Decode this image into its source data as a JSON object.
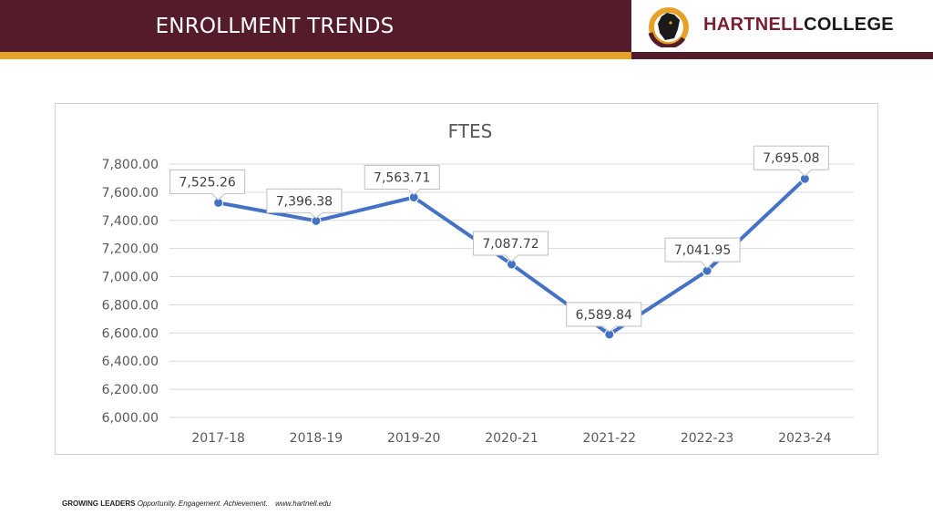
{
  "header": {
    "title": "ENROLLMENT TRENDS"
  },
  "logo": {
    "name_part1": "HARTNELL",
    "name_part2": "COLLEGE",
    "icon": "panther-logo-icon"
  },
  "footer": {
    "lead": "GROWING LEADERS",
    "tagline": "Opportunity. Engagement. Achievement.",
    "url": "www.hartnell.edu"
  },
  "colors": {
    "maroon": "#541b2a",
    "gold": "#e5a226",
    "line": "#4472c4"
  },
  "chart_data": {
    "type": "line",
    "title": "FTES",
    "xlabel": "",
    "ylabel": "",
    "categories": [
      "2017-18",
      "2018-19",
      "2019-20",
      "2020-21",
      "2021-22",
      "2022-23",
      "2023-24"
    ],
    "values": [
      7525.26,
      7396.38,
      7563.71,
      7087.72,
      6589.84,
      7041.95,
      7695.08
    ],
    "data_labels": [
      "7,525.26",
      "7,396.38",
      "7,563.71",
      "7,087.72",
      "6,589.84",
      "7,041.95",
      "7,695.08"
    ],
    "y_ticks": [
      "6,000.00",
      "6,200.00",
      "6,400.00",
      "6,600.00",
      "6,800.00",
      "7,000.00",
      "7,200.00",
      "7,400.00",
      "7,600.00",
      "7,800.00"
    ],
    "ylim": [
      6000,
      7800
    ],
    "grid": true,
    "legend": "none"
  }
}
